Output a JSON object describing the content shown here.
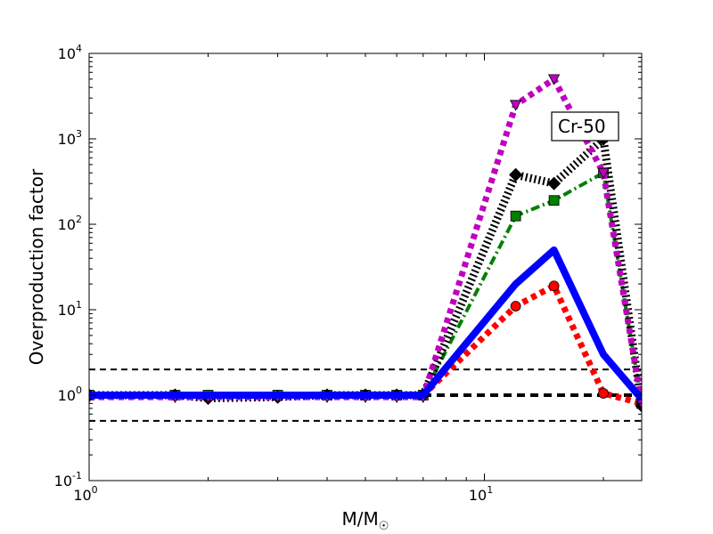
{
  "chart_data": {
    "type": "line",
    "title": "",
    "xlabel": "M/M",
    "xlabel_sub": "☉",
    "ylabel": "Overproduction factor",
    "xscale": "log",
    "yscale": "log",
    "xlim": [
      1,
      25
    ],
    "ylim": [
      0.1,
      10000
    ],
    "grid": false,
    "xticks": [
      {
        "value": 1,
        "base": "10",
        "exp": "0"
      },
      {
        "value": 10,
        "base": "10",
        "exp": "1"
      }
    ],
    "yticks": [
      {
        "value": 0.1,
        "base": "10",
        "exp": "-1"
      },
      {
        "value": 1,
        "base": "10",
        "exp": "0"
      },
      {
        "value": 10,
        "base": "10",
        "exp": "1"
      },
      {
        "value": 100,
        "base": "10",
        "exp": "2"
      },
      {
        "value": 1000,
        "base": "10",
        "exp": "3"
      },
      {
        "value": 10000,
        "base": "10",
        "exp": "4"
      }
    ],
    "annotation": "Cr-50",
    "reference_lines": [
      {
        "y": 2,
        "style": "dashed-thin",
        "color": "#000000"
      },
      {
        "y": 1,
        "style": "dashed-thick",
        "color": "#000000"
      },
      {
        "y": 0.5,
        "style": "dashed-thin",
        "color": "#000000"
      }
    ],
    "series": [
      {
        "color": "#ff0000",
        "linestyle": "dotted",
        "marker": "circle",
        "x": [
          1,
          1.65,
          2,
          3,
          4,
          5,
          6,
          7,
          12,
          15,
          20,
          25
        ],
        "y": [
          1,
          1,
          1,
          1,
          1,
          1,
          1,
          1,
          11,
          19,
          1.05,
          0.8
        ]
      },
      {
        "color": "#008000",
        "linestyle": "dashdot",
        "marker": "square",
        "x": [
          1,
          1.65,
          2,
          3,
          4,
          5,
          6,
          7,
          12,
          15,
          20,
          25
        ],
        "y": [
          1,
          1,
          1,
          1,
          1,
          1,
          1,
          1,
          125,
          190,
          400,
          0.8
        ]
      },
      {
        "color": "#000000",
        "linestyle": "dotted",
        "marker": "diamond",
        "x": [
          1,
          1.65,
          2,
          3,
          4,
          5,
          6,
          7,
          12,
          15,
          20,
          25
        ],
        "y": [
          1,
          1,
          0.92,
          0.95,
          1,
          1,
          1,
          1,
          380,
          300,
          1000,
          0.75
        ]
      },
      {
        "color": "#bf00bf",
        "linestyle": "dotted",
        "marker": "triangle-down",
        "x": [
          1,
          1.65,
          2,
          3,
          4,
          5,
          6,
          7,
          12,
          15,
          20,
          25
        ],
        "y": [
          0.95,
          0.95,
          0.95,
          0.95,
          0.95,
          0.95,
          0.95,
          0.95,
          2500,
          5000,
          400,
          0.8
        ]
      },
      {
        "color": "#0000ff",
        "linestyle": "solid",
        "marker": "none",
        "x": [
          1,
          1.65,
          2,
          3,
          4,
          5,
          6,
          7,
          12,
          15,
          20,
          25
        ],
        "y": [
          1,
          1,
          1,
          1,
          1,
          1,
          1,
          1,
          20,
          50,
          3,
          0.9
        ]
      }
    ]
  }
}
